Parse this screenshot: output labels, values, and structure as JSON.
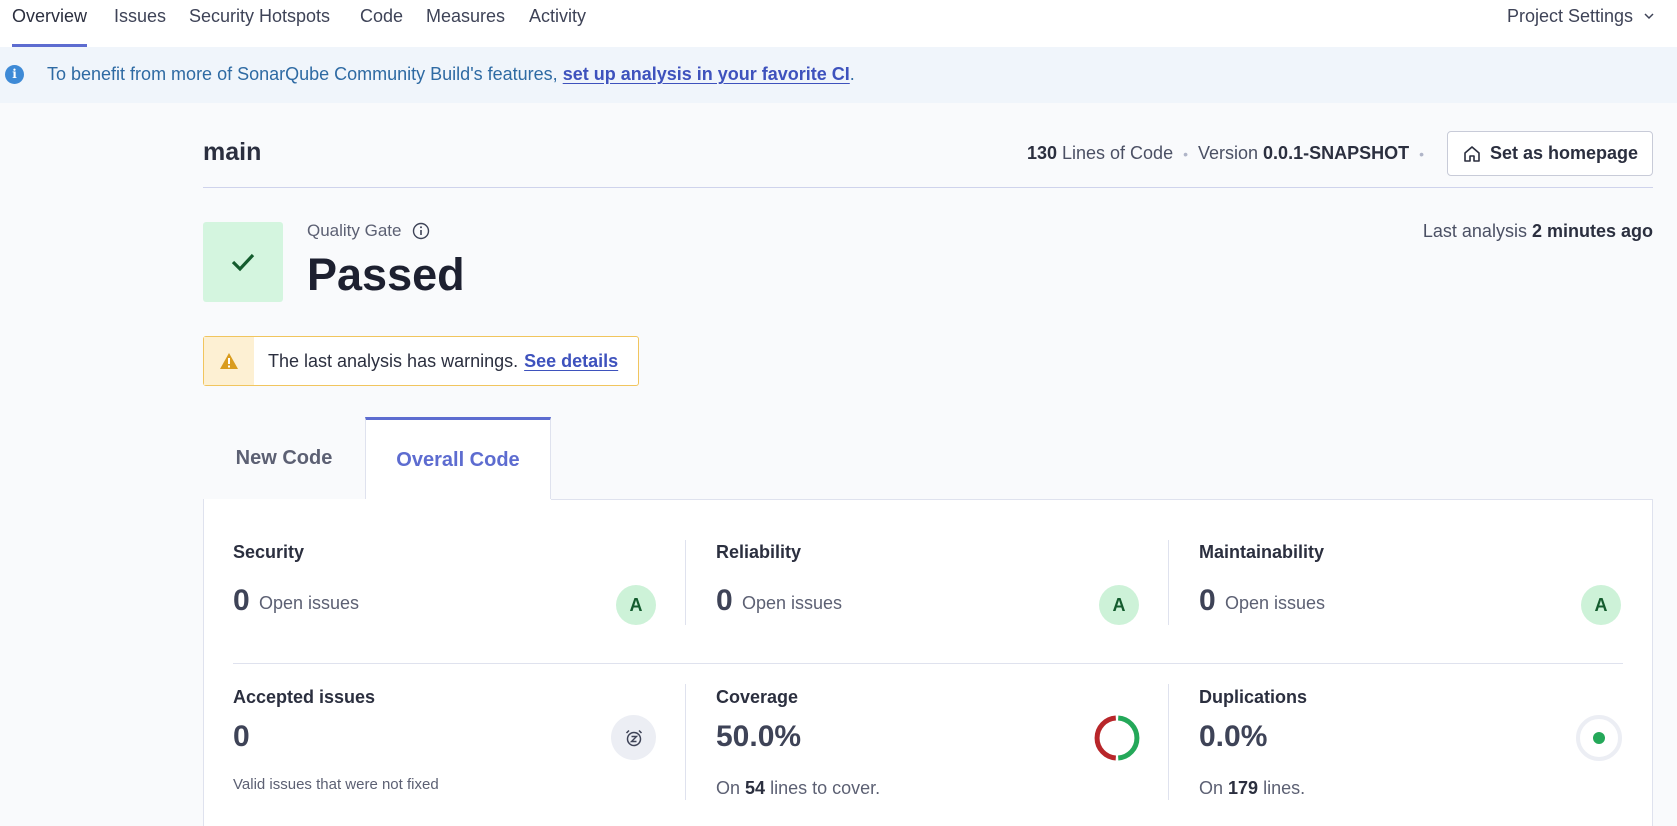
{
  "nav": {
    "tabs": [
      {
        "label": "Overview",
        "active": true
      },
      {
        "label": "Issues"
      },
      {
        "label": "Security Hotspots"
      },
      {
        "label": "Code"
      },
      {
        "label": "Measures"
      },
      {
        "label": "Activity"
      }
    ],
    "project_settings": "Project Settings"
  },
  "banner": {
    "text": "To benefit from more of SonarQube Community Build's features,",
    "link": "set up analysis in your favorite CI",
    "suffix": "."
  },
  "header": {
    "branch": "main",
    "loc_value": "130",
    "loc_label": "Lines of Code",
    "version_label": "Version",
    "version_value": "0.0.1-SNAPSHOT",
    "homepage_button": "Set as homepage"
  },
  "quality_gate": {
    "label": "Quality Gate",
    "status": "Passed",
    "last_analysis_label": "Last analysis",
    "last_analysis_value": "2 minutes ago"
  },
  "warning": {
    "text": "The last analysis has warnings.",
    "link": "See details"
  },
  "code_tabs": [
    {
      "label": "New Code"
    },
    {
      "label": "Overall Code",
      "active": true
    }
  ],
  "metrics": {
    "security": {
      "title": "Security",
      "value": "0",
      "sub": "Open issues",
      "rating": "A"
    },
    "reliability": {
      "title": "Reliability",
      "value": "0",
      "sub": "Open issues",
      "rating": "A"
    },
    "maintainability": {
      "title": "Maintainability",
      "value": "0",
      "sub": "Open issues",
      "rating": "A"
    },
    "accepted": {
      "title": "Accepted issues",
      "value": "0",
      "sub": "Valid issues that were not fixed"
    },
    "coverage": {
      "title": "Coverage",
      "value": "50.0%",
      "foot_prefix": "On",
      "foot_value": "54",
      "foot_suffix": "lines to cover.",
      "percent": 50
    },
    "duplications": {
      "title": "Duplications",
      "value": "0.0%",
      "foot_prefix": "On",
      "foot_value": "179",
      "foot_suffix": "lines."
    }
  },
  "colors": {
    "accent": "#5d6cd0",
    "pass_green": "#d4f5df",
    "coverage_green": "#24a859",
    "coverage_red": "#b8262a"
  }
}
